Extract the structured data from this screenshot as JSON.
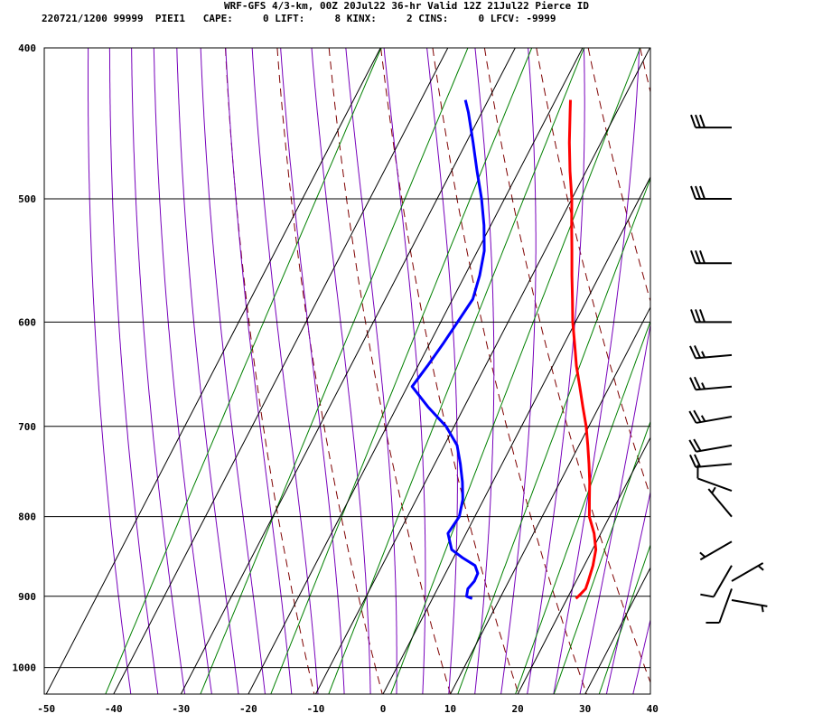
{
  "header": {
    "title": "WRF-GFS 4/3-km, 00Z 20Jul22 36-hr Valid 12Z 21Jul22 Pierce ID",
    "stats": "220721/1200 99999  PIEI1   CAPE:     0 LIFT:     8 KINX:     2 CINS:     0 LFCV: -9999"
  },
  "chart_data": {
    "type": "line",
    "title": "WRF-GFS 4/3-km, 00Z 20Jul22 36-hr Valid 12Z 21Jul22 Pierce ID",
    "xlabel": "",
    "ylabel": "",
    "x_axis": {
      "ticks": [
        -50,
        -40,
        -30,
        -20,
        -10,
        0,
        10,
        20,
        30,
        40
      ],
      "range": [
        -50,
        40
      ]
    },
    "y_axis": {
      "ticks": [
        400,
        500,
        600,
        700,
        800,
        900,
        1000
      ],
      "range": [
        400,
        1040
      ],
      "scale": "log",
      "inverted": true
    },
    "skew": true,
    "grid": true,
    "colors": {
      "temperature": "#ff0000",
      "dewpoint": "#0000ff",
      "dry_adiabat": "#7f0000",
      "moist_adiabat": "#7700bb",
      "mixing_ratio": "#008000",
      "grid": "#000000",
      "barb": "#000000"
    },
    "series": [
      {
        "key": "temperature",
        "color": "#ff0000",
        "points": [
          [
            903,
            21.3
          ],
          [
            900,
            21.5
          ],
          [
            890,
            22.0
          ],
          [
            880,
            21.8
          ],
          [
            860,
            21.3
          ],
          [
            840,
            20.5
          ],
          [
            820,
            19.0
          ],
          [
            800,
            17.0
          ],
          [
            780,
            15.7
          ],
          [
            760,
            14.4
          ],
          [
            740,
            12.9
          ],
          [
            720,
            11.3
          ],
          [
            700,
            9.6
          ],
          [
            680,
            7.6
          ],
          [
            660,
            5.6
          ],
          [
            640,
            3.5
          ],
          [
            620,
            1.6
          ],
          [
            600,
            -0.4
          ],
          [
            580,
            -2.2
          ],
          [
            560,
            -4.1
          ],
          [
            540,
            -6.0
          ],
          [
            520,
            -8.0
          ],
          [
            500,
            -10.0
          ],
          [
            480,
            -12.4
          ],
          [
            460,
            -14.7
          ],
          [
            440,
            -16.9
          ],
          [
            432,
            -17.8
          ]
        ]
      },
      {
        "key": "dewpoint",
        "color": "#0000ff",
        "points": [
          [
            903,
            5.9
          ],
          [
            900,
            4.9
          ],
          [
            890,
            4.5
          ],
          [
            880,
            4.9
          ],
          [
            870,
            4.8
          ],
          [
            860,
            3.8
          ],
          [
            850,
            1.3
          ],
          [
            840,
            -0.9
          ],
          [
            820,
            -2.7
          ],
          [
            800,
            -2.3
          ],
          [
            780,
            -3.1
          ],
          [
            760,
            -4.5
          ],
          [
            740,
            -6.2
          ],
          [
            720,
            -8.1
          ],
          [
            700,
            -11.2
          ],
          [
            680,
            -15.4
          ],
          [
            660,
            -19.3
          ],
          [
            640,
            -18.6
          ],
          [
            620,
            -18.0
          ],
          [
            600,
            -17.5
          ],
          [
            580,
            -17.0
          ],
          [
            560,
            -17.8
          ],
          [
            540,
            -19.0
          ],
          [
            520,
            -21.0
          ],
          [
            500,
            -23.4
          ],
          [
            480,
            -26.2
          ],
          [
            460,
            -29.0
          ],
          [
            440,
            -32.0
          ],
          [
            432,
            -33.4
          ]
        ]
      }
    ],
    "wind_barbs": [
      {
        "pressure": 905,
        "direction_deg": 100,
        "speed_kt": 5
      },
      {
        "pressure": 890,
        "direction_deg": 200,
        "speed_kt": 10
      },
      {
        "pressure": 880,
        "direction_deg": 60,
        "speed_kt": 5
      },
      {
        "pressure": 860,
        "direction_deg": 210,
        "speed_kt": 10
      },
      {
        "pressure": 830,
        "direction_deg": 240,
        "speed_kt": 5
      },
      {
        "pressure": 800,
        "direction_deg": 320,
        "speed_kt": 5
      },
      {
        "pressure": 770,
        "direction_deg": 290,
        "speed_kt": 10
      },
      {
        "pressure": 740,
        "direction_deg": 265,
        "speed_kt": 20
      },
      {
        "pressure": 720,
        "direction_deg": 260,
        "speed_kt": 20
      },
      {
        "pressure": 690,
        "direction_deg": 260,
        "speed_kt": 25
      },
      {
        "pressure": 660,
        "direction_deg": 265,
        "speed_kt": 25
      },
      {
        "pressure": 630,
        "direction_deg": 265,
        "speed_kt": 25
      },
      {
        "pressure": 600,
        "direction_deg": 270,
        "speed_kt": 30
      },
      {
        "pressure": 550,
        "direction_deg": 270,
        "speed_kt": 30
      },
      {
        "pressure": 500,
        "direction_deg": 270,
        "speed_kt": 30
      },
      {
        "pressure": 450,
        "direction_deg": 270,
        "speed_kt": 30
      }
    ]
  }
}
